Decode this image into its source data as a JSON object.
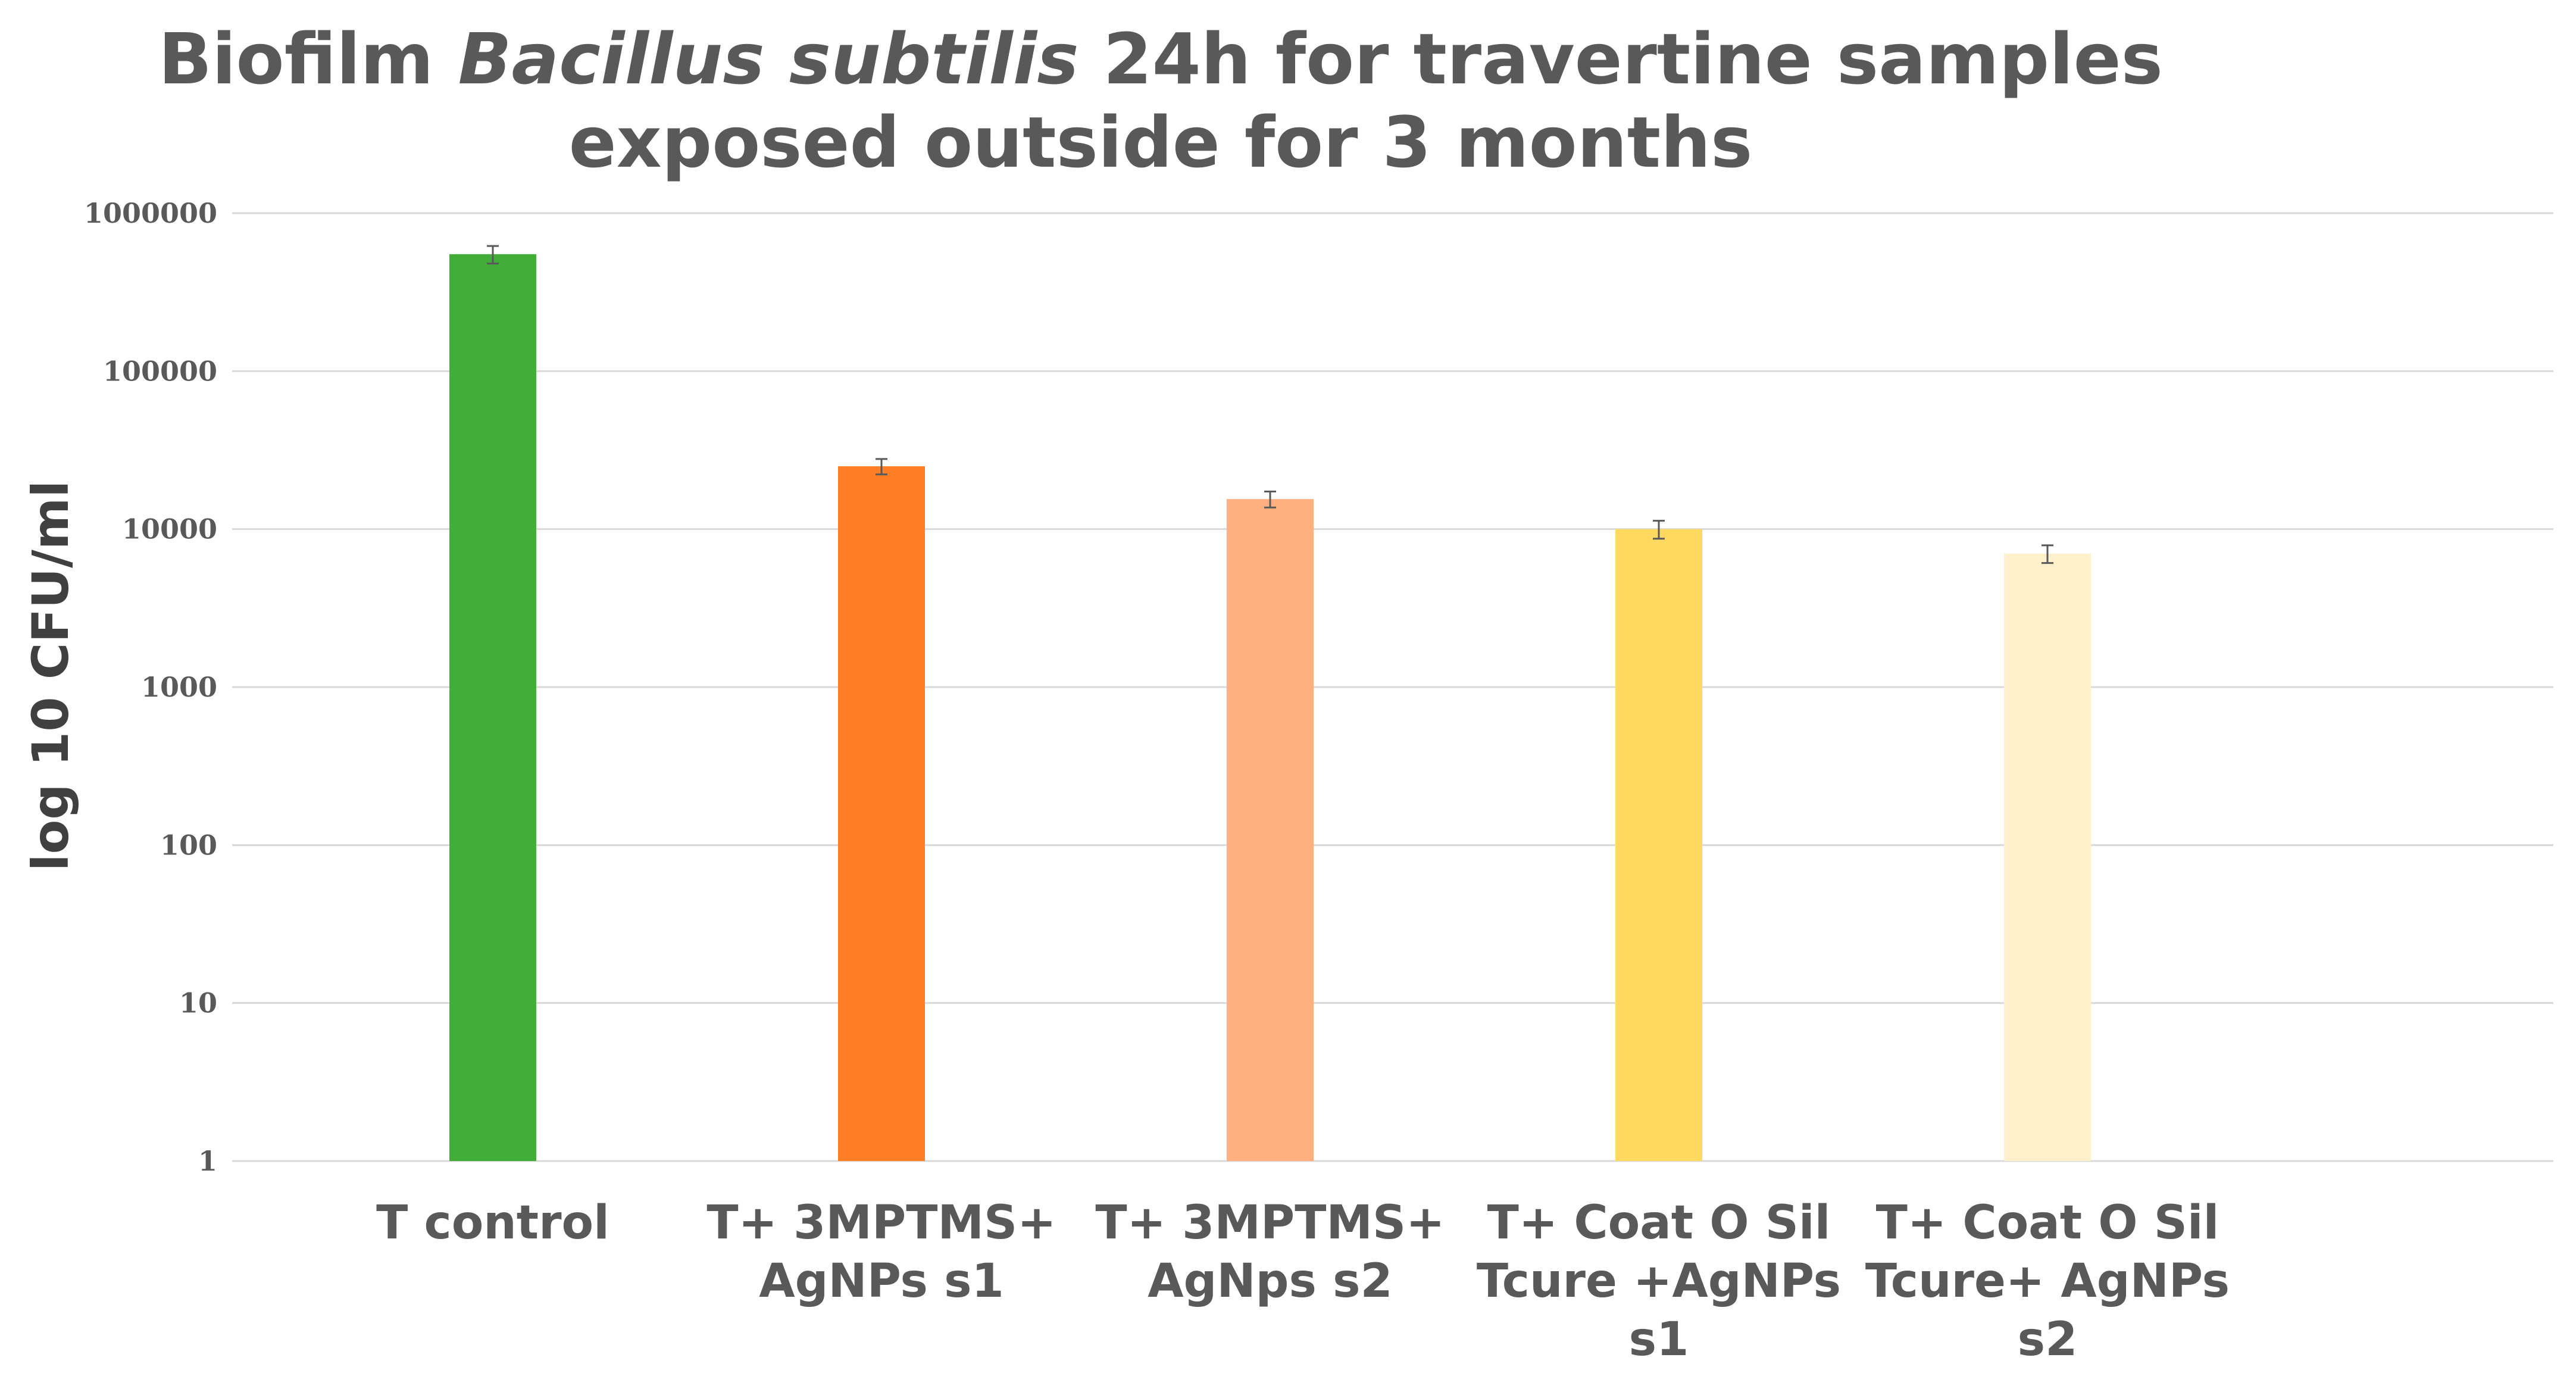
{
  "chart_data": {
    "type": "bar",
    "title_parts": [
      "Biofilm ",
      "Bacillus subtilis",
      " 24h for travertine samples"
    ],
    "title_line2": "exposed outside for 3 months",
    "ylabel": "log 10 CFU/ml",
    "xlabel": "",
    "yscale": "log",
    "ylim": [
      1,
      1000000
    ],
    "yticks": [
      "1",
      "10",
      "100",
      "1000",
      "10000",
      "100000",
      "1000000"
    ],
    "grid": true,
    "categories": [
      [
        "T control"
      ],
      [
        "T+ 3MPTMS+",
        "AgNPs s1"
      ],
      [
        "T+ 3MPTMS+",
        "AgNps s2"
      ],
      [
        "T+ Coat O Sil",
        "Tcure +AgNPs",
        "s1"
      ],
      [
        "T+ Coat O Sil",
        "Tcure+ AgNPs",
        "s2"
      ]
    ],
    "values": [
      550000,
      25000,
      15500,
      10000,
      7000
    ],
    "error": [
      70000,
      2800,
      1800,
      1300,
      900
    ],
    "colors": [
      "#43ad3a",
      "#ff7f27",
      "#ffb07e",
      "#ffd960",
      "#fff0cc"
    ]
  }
}
